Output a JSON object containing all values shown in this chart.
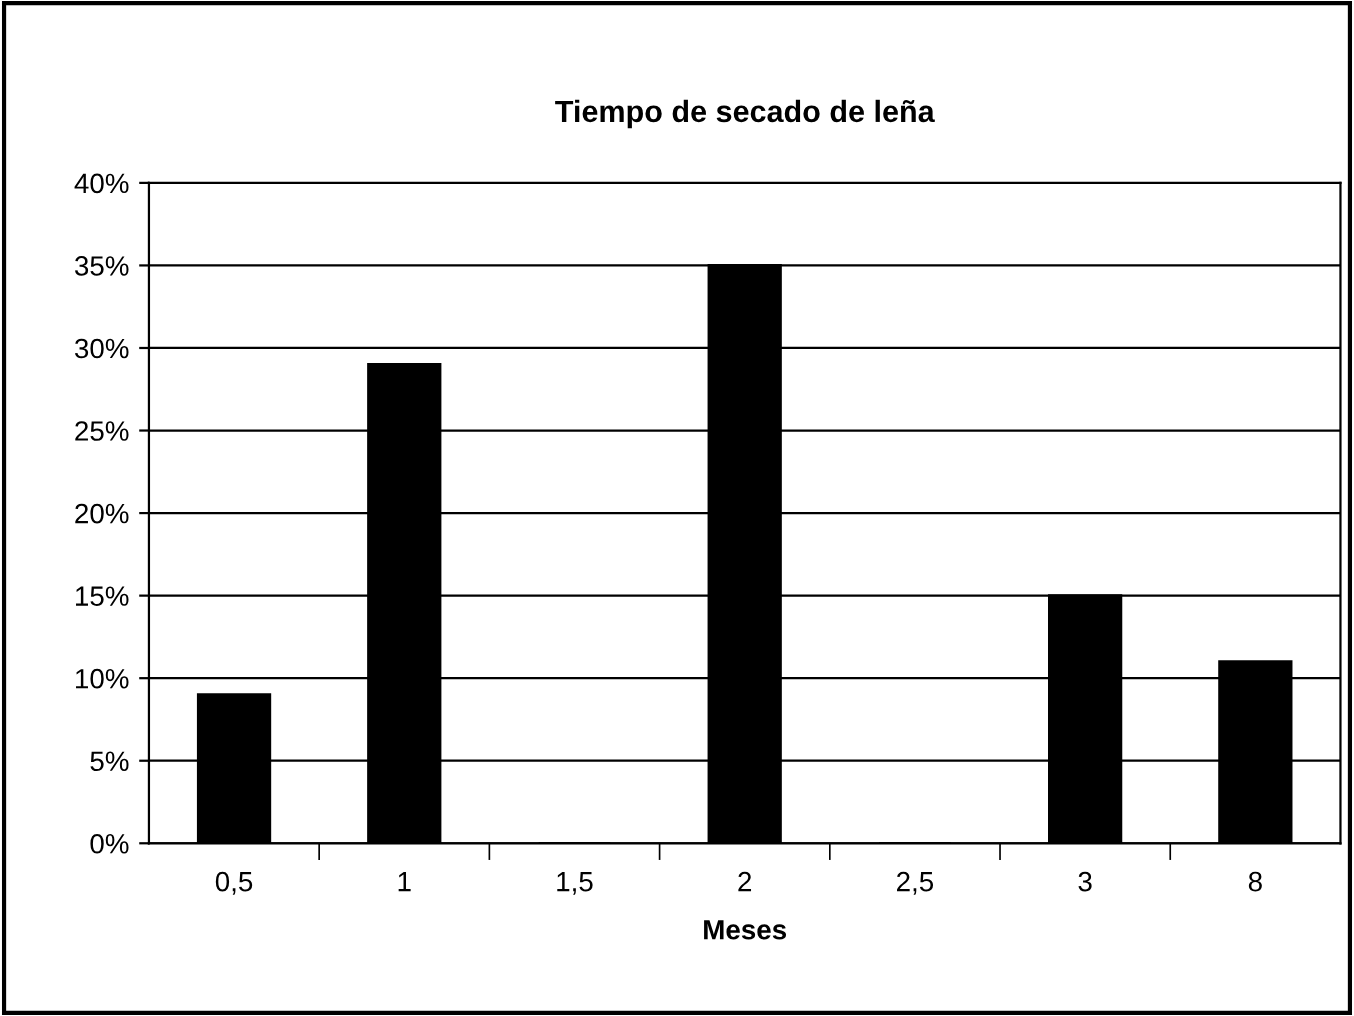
{
  "chart_data": {
    "type": "bar",
    "title": "Tiempo de secado de leña",
    "xlabel": "Meses",
    "categories": [
      "0,5",
      "1",
      "1,5",
      "2",
      "2,5",
      "3",
      "8"
    ],
    "values": [
      9,
      29,
      0,
      35,
      0,
      15,
      11
    ],
    "color": "#000000",
    "ylim": [
      0,
      40
    ],
    "yticks": [
      {
        "value": 0,
        "label": "0%"
      },
      {
        "value": 5,
        "label": "5%"
      },
      {
        "value": 10,
        "label": "10%"
      },
      {
        "value": 15,
        "label": "15%"
      },
      {
        "value": 20,
        "label": "20%"
      },
      {
        "value": 25,
        "label": "25%"
      },
      {
        "value": 30,
        "label": "30%"
      },
      {
        "value": 35,
        "label": "35%"
      },
      {
        "value": 40,
        "label": "40%"
      }
    ],
    "grid": "y",
    "legend": false
  }
}
